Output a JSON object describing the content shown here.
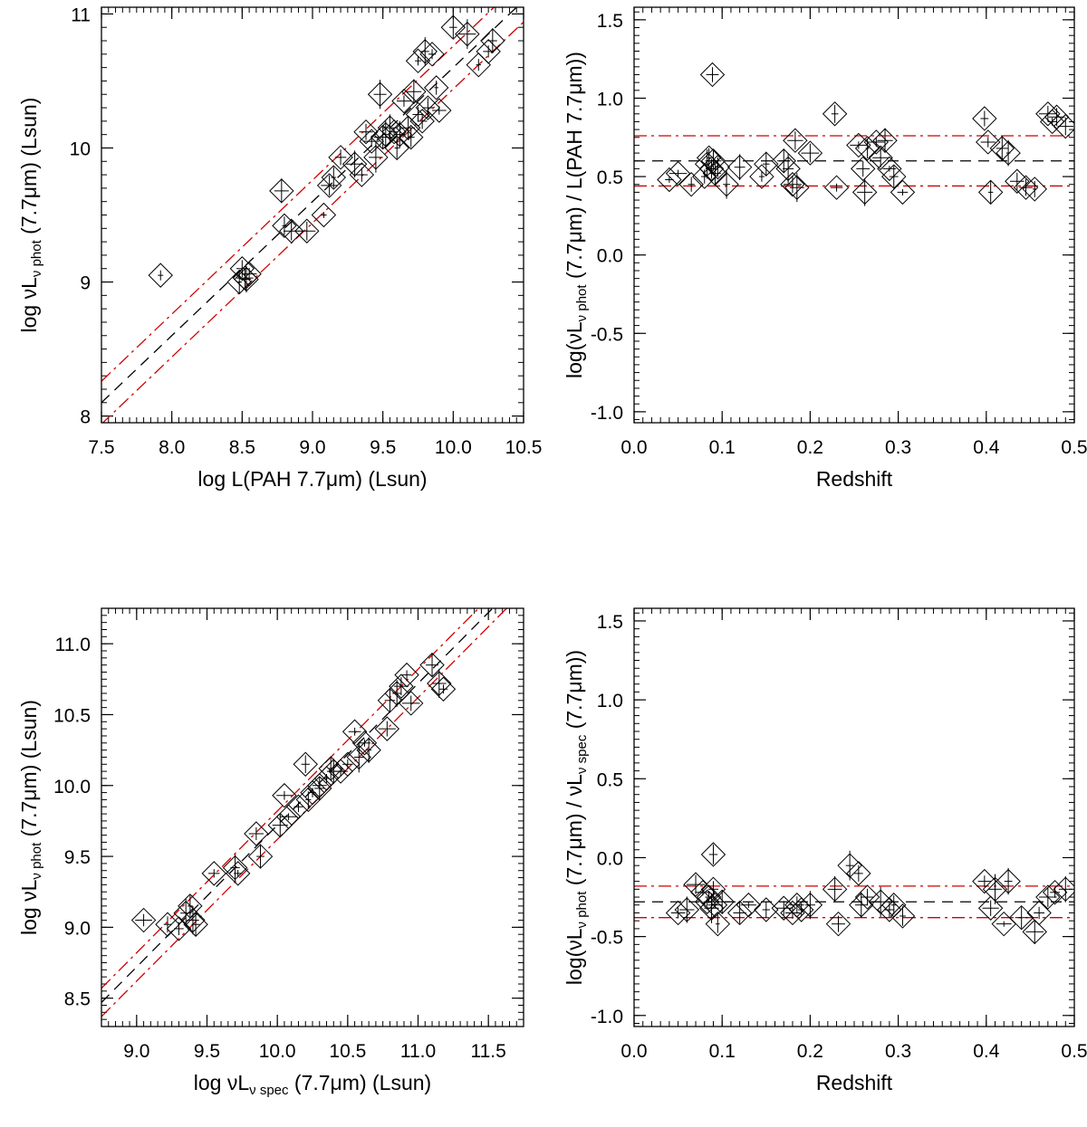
{
  "figure_colors": {
    "ink": "#000000",
    "fit_line": "#000000",
    "scatter_band": "#d00000"
  },
  "chart_data": [
    {
      "id": "top-left",
      "type": "scatter",
      "xlabel": "log L(PAH 7.7μm) (Lsun)",
      "ylabel": {
        "pre": "log νL",
        "sub": "ν phot",
        "post": " (7.7μm) (Lsun)"
      },
      "xlim": [
        7.5,
        10.5
      ],
      "ylim": [
        7.95,
        11.05
      ],
      "xticks": [
        7.5,
        8.0,
        8.5,
        9.0,
        9.5,
        10.0,
        10.5
      ],
      "xtick_labels": [
        "7.5",
        "8.0",
        "8.5",
        "9.0",
        "9.5",
        "10.0",
        "10.5"
      ],
      "yticks": [
        8,
        9,
        10,
        11
      ],
      "ytick_labels": [
        "8",
        "9",
        "10",
        "11"
      ],
      "lines": [
        {
          "kind": "fit",
          "slope": 1.0,
          "intercept": 0.6
        },
        {
          "kind": "band",
          "slope": 1.0,
          "intercept": 0.76
        },
        {
          "kind": "band",
          "slope": 1.0,
          "intercept": 0.44
        }
      ],
      "points": [
        [
          7.92,
          9.05
        ],
        [
          8.48,
          9.0
        ],
        [
          8.52,
          9.03
        ],
        [
          8.5,
          9.1
        ],
        [
          8.55,
          9.06
        ],
        [
          8.53,
          9.02
        ],
        [
          8.78,
          9.68
        ],
        [
          8.8,
          9.42
        ],
        [
          8.85,
          9.38
        ],
        [
          8.96,
          9.38
        ],
        [
          9.08,
          9.5
        ],
        [
          9.12,
          9.72
        ],
        [
          9.15,
          9.78
        ],
        [
          9.2,
          9.93
        ],
        [
          9.3,
          9.88
        ],
        [
          9.35,
          9.8
        ],
        [
          9.38,
          10.12
        ],
        [
          9.42,
          10.05
        ],
        [
          9.45,
          9.93
        ],
        [
          9.5,
          10.08
        ],
        [
          9.52,
          10.1
        ],
        [
          9.55,
          10.15
        ],
        [
          9.58,
          10.12
        ],
        [
          9.6,
          10.0
        ],
        [
          9.48,
          10.4
        ],
        [
          9.65,
          10.35
        ],
        [
          9.72,
          10.42
        ],
        [
          9.75,
          10.65
        ],
        [
          9.8,
          10.72
        ],
        [
          9.85,
          10.7
        ],
        [
          9.88,
          10.45
        ],
        [
          9.7,
          10.08
        ],
        [
          9.75,
          10.25
        ],
        [
          9.78,
          10.2
        ],
        [
          9.82,
          10.3
        ],
        [
          9.9,
          10.28
        ],
        [
          10.0,
          10.9
        ],
        [
          10.1,
          10.85
        ],
        [
          10.18,
          10.62
        ],
        [
          10.25,
          10.72
        ],
        [
          10.28,
          10.8
        ],
        [
          9.62,
          10.1
        ],
        [
          9.68,
          10.15
        ]
      ]
    },
    {
      "id": "top-right",
      "type": "scatter",
      "xlabel": "Redshift",
      "ylabel": {
        "pre": "log(νL",
        "sub": "ν phot",
        "post": " (7.7μm) / L(PAH 7.7μm))"
      },
      "xlim": [
        0.0,
        0.5
      ],
      "ylim": [
        -1.07,
        1.58
      ],
      "xticks": [
        0.0,
        0.1,
        0.2,
        0.3,
        0.4,
        0.5
      ],
      "xtick_labels": [
        "0.0",
        "0.1",
        "0.2",
        "0.3",
        "0.4",
        "0.5"
      ],
      "yticks": [
        -1.0,
        -0.5,
        0.0,
        0.5,
        1.0,
        1.5
      ],
      "ytick_labels": [
        "-1.0",
        "-0.5",
        "0.0",
        "0.5",
        "1.0",
        "1.5"
      ],
      "lines": [
        {
          "kind": "fit",
          "slope": 0.0,
          "intercept": 0.6
        },
        {
          "kind": "band",
          "slope": 0.0,
          "intercept": 0.76
        },
        {
          "kind": "band",
          "slope": 0.0,
          "intercept": 0.44
        }
      ],
      "points": [
        [
          0.04,
          0.48
        ],
        [
          0.05,
          0.52
        ],
        [
          0.065,
          0.45
        ],
        [
          0.08,
          0.5
        ],
        [
          0.083,
          0.58
        ],
        [
          0.085,
          0.62
        ],
        [
          0.088,
          0.55
        ],
        [
          0.09,
          0.6
        ],
        [
          0.092,
          0.52
        ],
        [
          0.095,
          0.56
        ],
        [
          0.089,
          1.15
        ],
        [
          0.105,
          0.45
        ],
        [
          0.12,
          0.56
        ],
        [
          0.145,
          0.5
        ],
        [
          0.15,
          0.58
        ],
        [
          0.17,
          0.6
        ],
        [
          0.175,
          0.55
        ],
        [
          0.18,
          0.45
        ],
        [
          0.185,
          0.43
        ],
        [
          0.183,
          0.73
        ],
        [
          0.2,
          0.65
        ],
        [
          0.228,
          0.9
        ],
        [
          0.23,
          0.43
        ],
        [
          0.255,
          0.7
        ],
        [
          0.26,
          0.55
        ],
        [
          0.262,
          0.4
        ],
        [
          0.265,
          0.68
        ],
        [
          0.275,
          0.72
        ],
        [
          0.28,
          0.62
        ],
        [
          0.285,
          0.73
        ],
        [
          0.29,
          0.55
        ],
        [
          0.295,
          0.5
        ],
        [
          0.305,
          0.4
        ],
        [
          0.398,
          0.87
        ],
        [
          0.402,
          0.72
        ],
        [
          0.405,
          0.4
        ],
        [
          0.418,
          0.68
        ],
        [
          0.425,
          0.65
        ],
        [
          0.435,
          0.47
        ],
        [
          0.445,
          0.43
        ],
        [
          0.455,
          0.42
        ],
        [
          0.47,
          0.9
        ],
        [
          0.475,
          0.85
        ],
        [
          0.48,
          0.88
        ],
        [
          0.49,
          0.82
        ]
      ]
    },
    {
      "id": "bottom-left",
      "type": "scatter",
      "xlabel": {
        "pre": "log νL",
        "sub": "ν spec",
        "post": " (7.7μm) (Lsun)"
      },
      "ylabel": {
        "pre": "log νL",
        "sub": "ν phot",
        "post": " (7.7μm) (Lsun)"
      },
      "xlim": [
        8.75,
        11.75
      ],
      "ylim": [
        8.3,
        11.25
      ],
      "xticks": [
        9.0,
        9.5,
        10.0,
        10.5,
        11.0,
        11.5
      ],
      "xtick_labels": [
        "9.0",
        "9.5",
        "10.0",
        "10.5",
        "11.0",
        "11.5"
      ],
      "yticks": [
        8.5,
        9.0,
        9.5,
        10.0,
        10.5,
        11.0
      ],
      "ytick_labels": [
        "8.5",
        "9.0",
        "9.5",
        "10.0",
        "10.5",
        "11.0"
      ],
      "lines": [
        {
          "kind": "fit",
          "slope": 1.0,
          "intercept": -0.28
        },
        {
          "kind": "band",
          "slope": 1.0,
          "intercept": -0.18
        },
        {
          "kind": "band",
          "slope": 1.0,
          "intercept": -0.38
        }
      ],
      "points": [
        [
          9.05,
          9.05
        ],
        [
          9.22,
          9.02
        ],
        [
          9.3,
          8.99
        ],
        [
          9.35,
          9.1
        ],
        [
          9.38,
          9.15
        ],
        [
          9.4,
          9.05
        ],
        [
          9.42,
          9.02
        ],
        [
          9.55,
          9.38
        ],
        [
          9.7,
          9.42
        ],
        [
          9.72,
          9.38
        ],
        [
          9.85,
          9.66
        ],
        [
          9.88,
          9.5
        ],
        [
          10.02,
          9.72
        ],
        [
          10.05,
          9.93
        ],
        [
          10.08,
          9.78
        ],
        [
          10.15,
          9.85
        ],
        [
          10.2,
          10.15
        ],
        [
          10.22,
          9.9
        ],
        [
          10.25,
          9.95
        ],
        [
          10.3,
          10.0
        ],
        [
          10.35,
          10.05
        ],
        [
          10.38,
          10.12
        ],
        [
          10.4,
          10.1
        ],
        [
          10.45,
          10.1
        ],
        [
          10.5,
          10.15
        ],
        [
          10.55,
          10.38
        ],
        [
          10.58,
          10.2
        ],
        [
          10.62,
          10.3
        ],
        [
          10.65,
          10.25
        ],
        [
          10.78,
          10.4
        ],
        [
          10.8,
          10.6
        ],
        [
          10.85,
          10.65
        ],
        [
          10.88,
          10.7
        ],
        [
          10.92,
          10.78
        ],
        [
          10.95,
          10.58
        ],
        [
          11.1,
          10.85
        ],
        [
          11.15,
          10.72
        ],
        [
          11.18,
          10.68
        ],
        [
          10.3,
          9.98
        ]
      ]
    },
    {
      "id": "bottom-right",
      "type": "scatter",
      "xlabel": "Redshift",
      "ylabel": {
        "pre": "log(νL",
        "sub": "ν phot",
        "post": " (7.7μm) / νL",
        "sub2": "ν spec",
        "post2": " (7.7μm))"
      },
      "xlim": [
        0.0,
        0.5
      ],
      "ylim": [
        -1.07,
        1.58
      ],
      "xticks": [
        0.0,
        0.1,
        0.2,
        0.3,
        0.4,
        0.5
      ],
      "xtick_labels": [
        "0.0",
        "0.1",
        "0.2",
        "0.3",
        "0.4",
        "0.5"
      ],
      "yticks": [
        -1.0,
        -0.5,
        0.0,
        0.5,
        1.0,
        1.5
      ],
      "ytick_labels": [
        "-1.0",
        "-0.5",
        "0.0",
        "0.5",
        "1.0",
        "1.5"
      ],
      "lines": [
        {
          "kind": "fit",
          "slope": 0.0,
          "intercept": -0.28
        },
        {
          "kind": "band",
          "slope": 0.0,
          "intercept": -0.18
        },
        {
          "kind": "band",
          "slope": 0.0,
          "intercept": -0.38
        }
      ],
      "points": [
        [
          0.05,
          -0.35
        ],
        [
          0.06,
          -0.33
        ],
        [
          0.07,
          -0.17
        ],
        [
          0.078,
          -0.22
        ],
        [
          0.083,
          -0.28
        ],
        [
          0.085,
          -0.25
        ],
        [
          0.088,
          -0.32
        ],
        [
          0.09,
          -0.2
        ],
        [
          0.092,
          -0.3
        ],
        [
          0.095,
          -0.42
        ],
        [
          0.09,
          0.02
        ],
        [
          0.1,
          -0.28
        ],
        [
          0.12,
          -0.35
        ],
        [
          0.13,
          -0.3
        ],
        [
          0.15,
          -0.33
        ],
        [
          0.17,
          -0.32
        ],
        [
          0.18,
          -0.35
        ],
        [
          0.185,
          -0.3
        ],
        [
          0.19,
          -0.33
        ],
        [
          0.2,
          -0.3
        ],
        [
          0.228,
          -0.2
        ],
        [
          0.232,
          -0.42
        ],
        [
          0.245,
          -0.05
        ],
        [
          0.255,
          -0.1
        ],
        [
          0.258,
          -0.3
        ],
        [
          0.265,
          -0.25
        ],
        [
          0.28,
          -0.28
        ],
        [
          0.29,
          -0.33
        ],
        [
          0.295,
          -0.3
        ],
        [
          0.305,
          -0.37
        ],
        [
          0.398,
          -0.15
        ],
        [
          0.405,
          -0.32
        ],
        [
          0.41,
          -0.2
        ],
        [
          0.42,
          -0.42
        ],
        [
          0.425,
          -0.15
        ],
        [
          0.44,
          -0.38
        ],
        [
          0.455,
          -0.47
        ],
        [
          0.46,
          -0.35
        ],
        [
          0.47,
          -0.25
        ],
        [
          0.478,
          -0.22
        ],
        [
          0.49,
          -0.2
        ]
      ]
    }
  ]
}
